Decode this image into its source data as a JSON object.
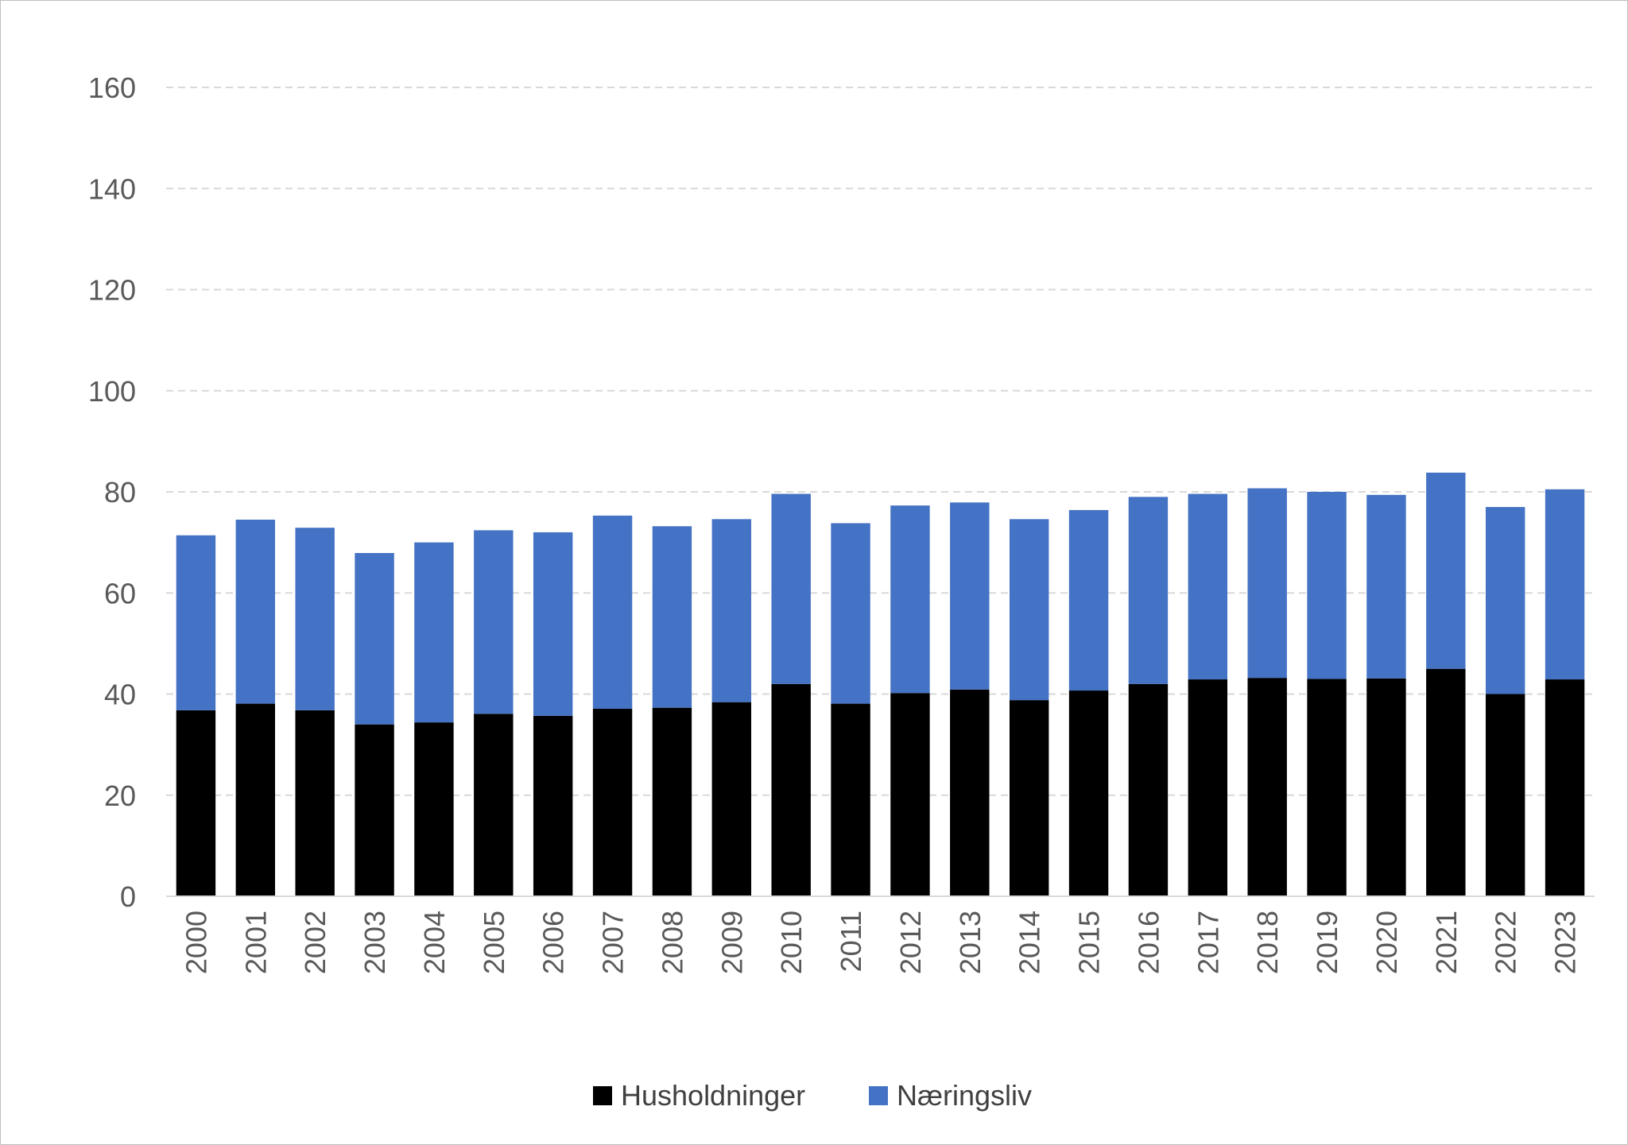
{
  "chart_data": {
    "type": "bar",
    "stacked": true,
    "categories": [
      "2000",
      "2001",
      "2002",
      "2003",
      "2004",
      "2005",
      "2006",
      "2007",
      "2008",
      "2009",
      "2010",
      "2011",
      "2012",
      "2013",
      "2014",
      "2015",
      "2016",
      "2017",
      "2018",
      "2019",
      "2020",
      "2021",
      "2022",
      "2023"
    ],
    "series": [
      {
        "name": "Husholdninger",
        "color": "#000000",
        "values": [
          36.8,
          38.1,
          36.8,
          34.0,
          34.4,
          36.1,
          35.7,
          37.1,
          37.3,
          38.4,
          42.0,
          38.1,
          40.2,
          40.9,
          38.8,
          40.7,
          42.0,
          42.9,
          43.2,
          43.0,
          43.1,
          45.0,
          40.0,
          42.9
        ]
      },
      {
        "name": "Næringsliv",
        "color": "#4472c4",
        "values": [
          34.6,
          36.4,
          36.1,
          33.9,
          35.6,
          36.3,
          36.3,
          38.2,
          35.9,
          36.2,
          37.6,
          35.7,
          37.1,
          37.0,
          35.8,
          35.7,
          37.0,
          36.7,
          37.5,
          37.0,
          36.3,
          38.8,
          37.0,
          37.6
        ]
      }
    ],
    "yticks": [
      "0",
      "20",
      "40",
      "60",
      "80",
      "100",
      "120",
      "140",
      "160"
    ],
    "ylim": [
      0,
      160
    ],
    "grid": "horizontal dashed",
    "legend_position": "bottom",
    "title": "",
    "xlabel": "",
    "ylabel": ""
  }
}
